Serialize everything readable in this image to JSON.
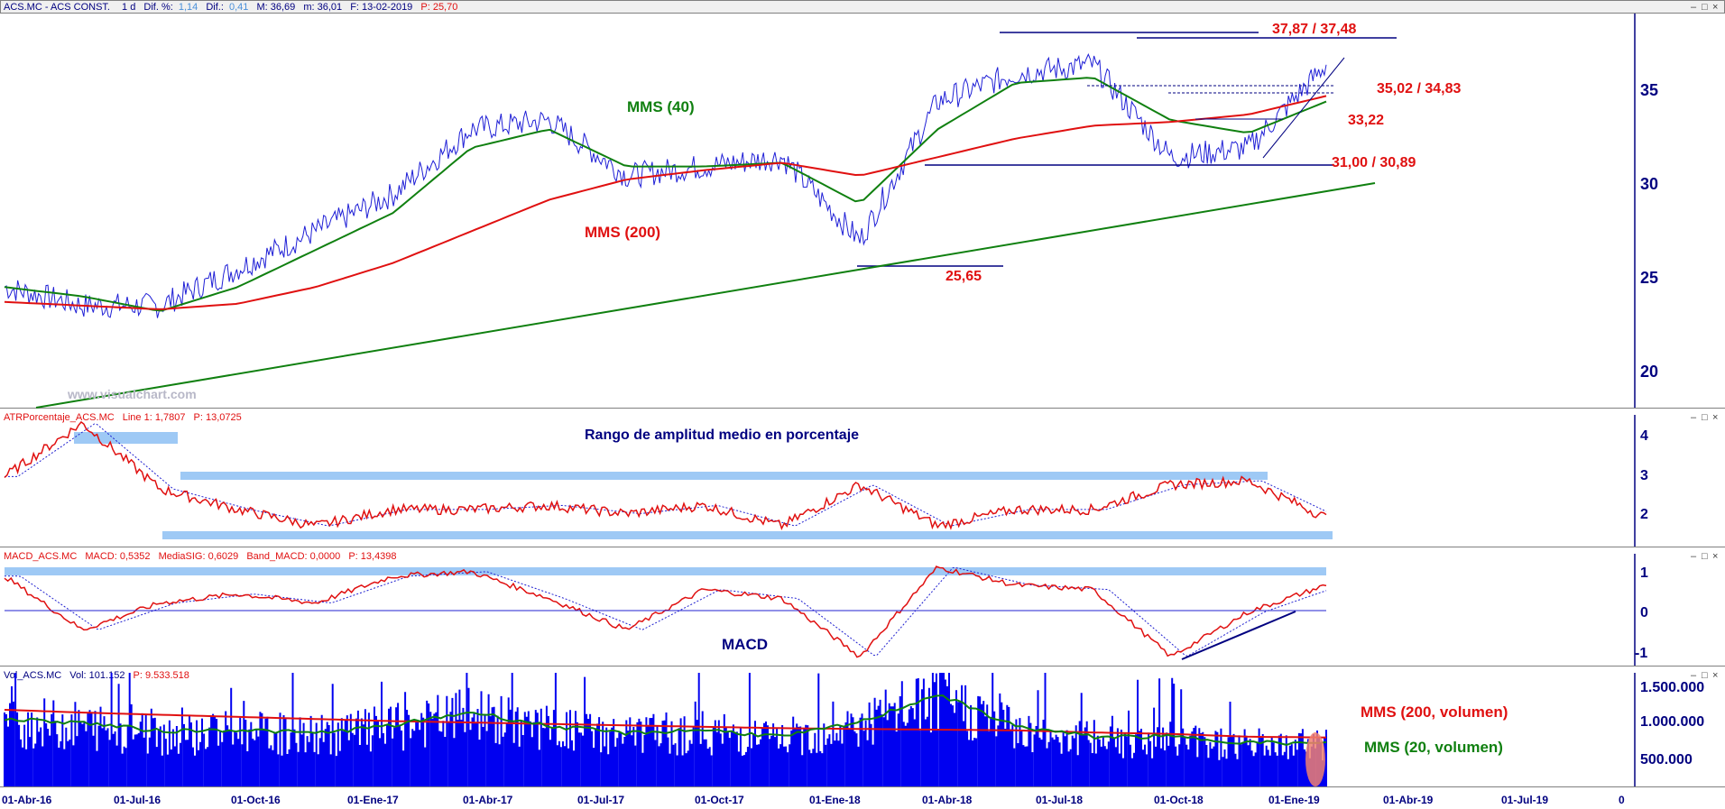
{
  "panels": {
    "price": {
      "header": {
        "symbol": "ACS.MC - ACS CONST.",
        "period": "1 d",
        "dif_pct_label": "Dif. %:",
        "dif_pct": "1,14",
        "dif_label": "Dif.:",
        "dif": "0,41",
        "max": "M: 36,69",
        "min": "m: 36,01",
        "date": "F: 13-02-2019",
        "p": "P: 25,70"
      },
      "watermark": "www.visualchart.com",
      "y_ticks": [
        "35",
        "30",
        "25",
        "20"
      ],
      "labels": {
        "mms40": "MMS (40)",
        "mms200": "MMS (200)"
      },
      "levels": {
        "top": "37,87 / 37,48",
        "mid": "35,02 / 34,83",
        "l3322": "33,22",
        "support": "31,00 / 30,89",
        "low": "25,65"
      }
    },
    "atr": {
      "header": {
        "name": "ATRPorcentaje_ACS.MC",
        "line": "Line 1: 1,7807",
        "p": "P: 13,0725"
      },
      "title": "Rango de amplitud medio en porcentaje",
      "y_ticks": [
        "4",
        "3",
        "2"
      ]
    },
    "macd": {
      "header": {
        "name": "MACD_ACS.MC",
        "macd": "MACD: 0,5352",
        "sig": "MediaSIG: 0,6029",
        "band": "Band_MACD: 0,0000",
        "p": "P: 13,4398"
      },
      "title": "MACD",
      "y_ticks": [
        "1",
        "0",
        "-1"
      ]
    },
    "volume": {
      "header": {
        "name": "Vol_ACS.MC",
        "vol": "Vol: 101.152",
        "p": "P: 9.533.518"
      },
      "labels": {
        "mms200": "MMS (200, volumen)",
        "mms20": "MMS (20, volumen)"
      },
      "y_ticks": [
        "1.500.000",
        "1.000.000",
        "500.000"
      ]
    }
  },
  "x_axis": {
    "ticks": [
      "01-Abr-16",
      "01-Jul-16",
      "01-Oct-16",
      "01-Ene-17",
      "01-Abr-17",
      "01-Jul-17",
      "01-Oct-17",
      "01-Ene-18",
      "01-Abr-18",
      "01-Jul-18",
      "01-Oct-18",
      "01-Ene-19",
      "01-Abr-19",
      "01-Jul-19",
      "0"
    ]
  },
  "colors": {
    "price": "#1f1fd6",
    "mms40": "#108010",
    "mms200": "#e01010",
    "trend": "#108010",
    "levels": "#000080",
    "band": "#9ec9f5",
    "annot_red": "#e01010",
    "annot_navy": "#000080",
    "volume": "#0000f0"
  },
  "chart_data": [
    {
      "type": "line",
      "title": "",
      "ylim": [
        18,
        39
      ],
      "x": [
        "2016-04",
        "2016-06",
        "2016-08",
        "2016-10",
        "2016-12",
        "2017-02",
        "2017-04",
        "2017-06",
        "2017-08",
        "2017-10",
        "2017-12",
        "2018-02",
        "2018-04",
        "2018-06",
        "2018-08",
        "2018-10",
        "2018-12",
        "2019-02"
      ],
      "series": [
        {
          "name": "",
          "values": [
            24.5,
            23.5,
            23.5,
            25.5,
            27.5,
            29.5,
            33,
            33.5,
            30.5,
            31,
            31.5,
            27,
            34.5,
            36,
            36.5,
            31.5,
            32,
            36.5
          ]
        },
        {
          "name": "MMS (40)",
          "values": [
            24.5,
            24,
            23.2,
            24.5,
            26.5,
            28.5,
            32,
            33,
            31,
            31,
            31.2,
            29,
            33,
            35.5,
            35.8,
            33.5,
            32.8,
            34.5
          ]
        },
        {
          "name": "MMS (200)",
          "values": [
            23.7,
            23.5,
            23.3,
            23.6,
            24.5,
            25.8,
            27.5,
            29.2,
            30.3,
            30.8,
            31.2,
            30.5,
            31.5,
            32.5,
            33.2,
            33.4,
            33.8,
            34.8
          ]
        }
      ],
      "annotations": [
        "37,87 / 37,48",
        "35,02 / 34,83",
        "33,22",
        "31,00 / 30,89",
        "25,65"
      ]
    },
    {
      "type": "line",
      "title": "Rango de amplitud medio en porcentaje",
      "ylim": [
        1.1,
        4.3
      ],
      "x": [
        "2016-04",
        "2016-06",
        "2016-08",
        "2016-10",
        "2016-12",
        "2017-02",
        "2017-04",
        "2017-06",
        "2017-08",
        "2017-10",
        "2017-12",
        "2018-02",
        "2018-04",
        "2018-06",
        "2018-08",
        "2018-10",
        "2018-12",
        "2019-02"
      ],
      "series": [
        {
          "name": "",
          "values": [
            2.8,
            4.1,
            2.5,
            2.0,
            1.6,
            2.0,
            2.0,
            2.1,
            1.9,
            2.1,
            1.6,
            2.6,
            1.6,
            2.0,
            2.0,
            2.6,
            2.7,
            1.8
          ]
        }
      ]
    },
    {
      "type": "line",
      "title": "MACD",
      "ylim": [
        -1.3,
        1.2
      ],
      "x": [
        "2016-04",
        "2016-06",
        "2016-08",
        "2016-10",
        "2016-12",
        "2017-02",
        "2017-04",
        "2017-06",
        "2017-08",
        "2017-10",
        "2017-12",
        "2018-02",
        "2018-04",
        "2018-06",
        "2018-08",
        "2018-10",
        "2018-12",
        "2019-02"
      ],
      "series": [
        {
          "name": "",
          "values": [
            0.7,
            -0.5,
            0.1,
            0.3,
            0.1,
            0.7,
            0.8,
            0.2,
            -0.5,
            0.4,
            0.2,
            -1.1,
            0.9,
            0.5,
            0.4,
            -1.1,
            -0.1,
            0.5
          ]
        }
      ]
    },
    {
      "type": "bar",
      "title": "",
      "ylim": [
        0,
        1600000
      ],
      "x": [
        "2016-04",
        "2016-06",
        "2016-08",
        "2016-10",
        "2016-12",
        "2017-02",
        "2017-04",
        "2017-06",
        "2017-08",
        "2017-10",
        "2017-12",
        "2018-02",
        "2018-04",
        "2018-06",
        "2018-08",
        "2018-10",
        "2018-12",
        "2019-02"
      ],
      "series": [
        {
          "name": "MMS (200, volumen)",
          "values": [
            1080000,
            1040000,
            1010000,
            980000,
            950000,
            920000,
            900000,
            880000,
            860000,
            840000,
            820000,
            810000,
            800000,
            790000,
            760000,
            740000,
            700000,
            690000
          ]
        },
        {
          "name": "MMS (20, volumen)",
          "values": [
            950000,
            900000,
            780000,
            800000,
            750000,
            860000,
            1050000,
            850000,
            750000,
            800000,
            700000,
            900000,
            1300000,
            850000,
            700000,
            700000,
            620000,
            600000
          ]
        }
      ]
    }
  ]
}
